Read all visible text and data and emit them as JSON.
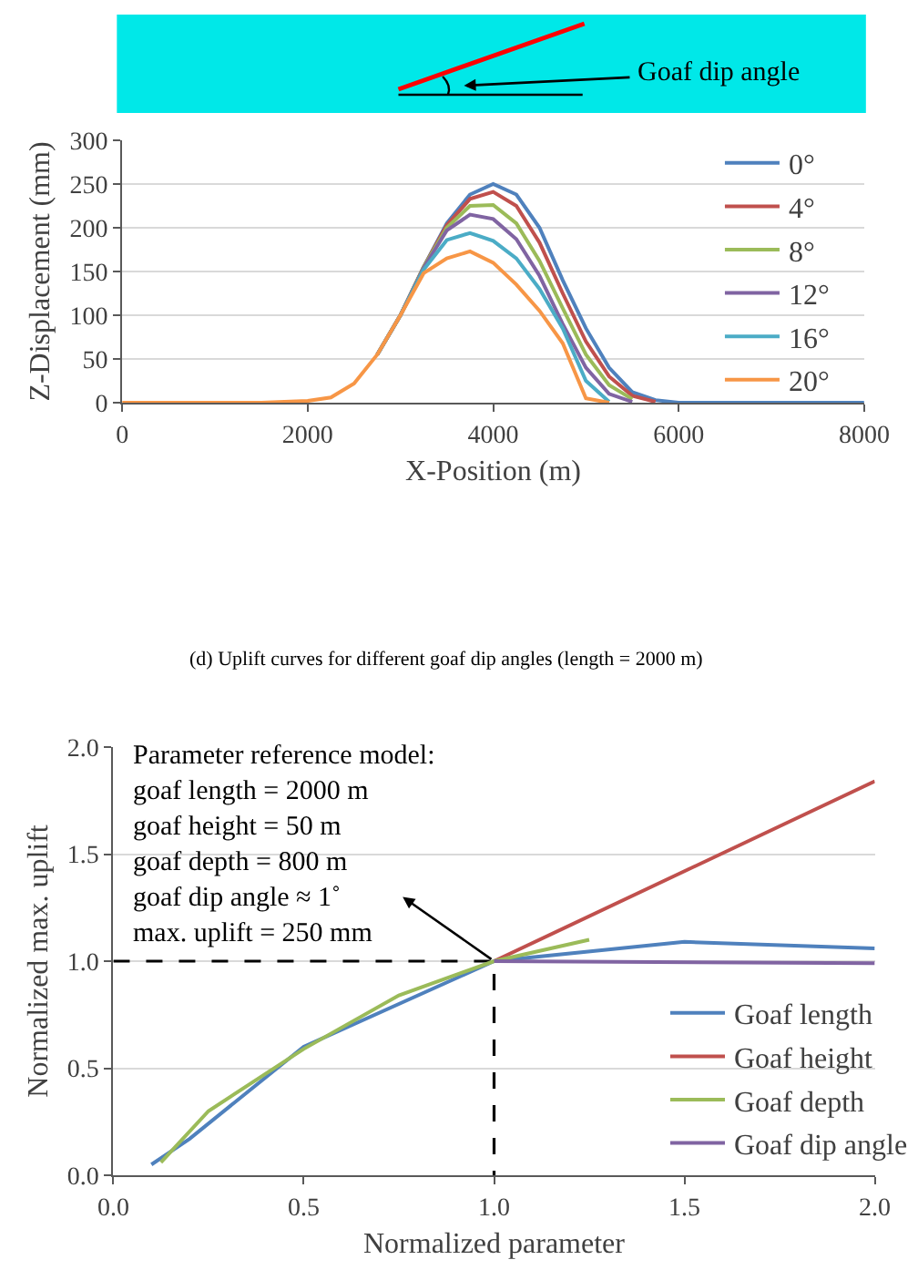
{
  "chart_data": [
    {
      "type": "line",
      "xlabel": "X-Position (m)",
      "ylabel": "Z-Displacement (mm)",
      "annotations": [
        "Goaf dip angle",
        "(d) Uplift curves for different goaf dip angles (length = 2000 m)"
      ],
      "x": [
        0,
        1000,
        1500,
        1750,
        2000,
        2250,
        2500,
        2750,
        3000,
        3250,
        3500,
        3750,
        4000,
        4250,
        4500,
        4750,
        5000,
        5250,
        5500,
        5750,
        6000,
        7000,
        8000
      ],
      "series": [
        {
          "name": "0°",
          "color": "#4f81bd",
          "values": [
            null,
            null,
            null,
            null,
            null,
            null,
            null,
            55,
            100,
            155,
            205,
            238,
            250,
            238,
            200,
            140,
            85,
            40,
            12,
            3,
            0,
            0,
            0
          ]
        },
        {
          "name": "4°",
          "color": "#c0504d",
          "values": [
            null,
            null,
            null,
            null,
            null,
            null,
            null,
            55,
            100,
            155,
            203,
            233,
            241,
            225,
            183,
            125,
            70,
            30,
            8,
            1,
            null,
            null,
            null
          ]
        },
        {
          "name": "8°",
          "color": "#9bbb59",
          "values": [
            null,
            null,
            null,
            null,
            null,
            null,
            null,
            55,
            100,
            155,
            200,
            225,
            226,
            205,
            162,
            108,
            55,
            20,
            4,
            null,
            null,
            null,
            null
          ]
        },
        {
          "name": "12°",
          "color": "#8064a2",
          "values": [
            null,
            null,
            null,
            null,
            null,
            null,
            null,
            55,
            100,
            154,
            197,
            215,
            210,
            187,
            145,
            90,
            40,
            10,
            1,
            null,
            null,
            null,
            null
          ]
        },
        {
          "name": "16°",
          "color": "#4bacc6",
          "values": [
            null,
            null,
            null,
            null,
            null,
            null,
            null,
            55,
            100,
            152,
            186,
            194,
            185,
            165,
            130,
            85,
            25,
            1,
            null,
            null,
            null,
            null,
            null
          ]
        },
        {
          "name": "20°",
          "color": "#f79646",
          "values": [
            0,
            0,
            0,
            1,
            2,
            6,
            22,
            55,
            100,
            148,
            165,
            173,
            160,
            135,
            105,
            68,
            5,
            0,
            null,
            null,
            null,
            null,
            null
          ]
        }
      ],
      "xlim": [
        0,
        8000
      ],
      "xticks": [
        0,
        2000,
        4000,
        6000,
        8000
      ],
      "ylim": [
        0,
        300
      ],
      "yticks": [
        0,
        50,
        100,
        150,
        200,
        250,
        300
      ],
      "grid": "y",
      "legend": "right"
    },
    {
      "type": "line",
      "xlabel": "Normalized parameter",
      "ylabel": "Normalized max. uplift",
      "annotations": [
        {
          "text": "Parameter reference model:\ngoaf length = 2000 m\ngoaf height = 50 m\ngoaf depth = 800 m\ngoaf dip angle ≈ 1˚\nmax. uplift = 250 mm",
          "x": 1,
          "y": 1
        }
      ],
      "series": [
        {
          "color": "#000000",
          "line_style": "dashed",
          "x": [
            0,
            1,
            1
          ],
          "values": [
            1,
            1,
            0
          ]
        },
        {
          "name": "Goaf length",
          "color": "#4f81bd",
          "x": [
            0.1,
            0.2,
            0.5,
            1,
            1.5,
            2
          ],
          "values": [
            0.05,
            0.17,
            0.6,
            1,
            1.09,
            1.06
          ]
        },
        {
          "name": "Goaf height",
          "color": "#c0504d",
          "x": [
            1,
            1.5,
            2
          ],
          "values": [
            1,
            1.42,
            1.84
          ]
        },
        {
          "name": "Goaf depth",
          "color": "#9bbb59",
          "x": [
            0.125,
            0.25,
            0.5,
            0.75,
            1,
            1.25
          ],
          "values": [
            0.06,
            0.3,
            0.59,
            0.84,
            1,
            1.1
          ]
        },
        {
          "name": "Goaf dip angle",
          "color": "#8064a2",
          "x": [
            1,
            2
          ],
          "values": [
            1,
            0.99
          ]
        }
      ],
      "xlim": [
        0,
        2
      ],
      "xticks": [
        {
          "value": 0,
          "label": "0.0"
        },
        {
          "value": 0.5,
          "label": "0.5"
        },
        {
          "value": 1,
          "label": "1.0"
        },
        {
          "value": 1.5,
          "label": "1.5"
        },
        {
          "value": 2,
          "label": "2.0"
        }
      ],
      "ylim": [
        0,
        2
      ],
      "yticks": [
        {
          "value": 0,
          "label": "0.0"
        },
        {
          "value": 0.5,
          "label": "0.5"
        },
        {
          "value": 1,
          "label": "1.0"
        },
        {
          "value": 1.5,
          "label": "1.5"
        },
        {
          "value": 2,
          "label": "2.0"
        }
      ],
      "grid": "y",
      "legend": "bottom right"
    }
  ]
}
